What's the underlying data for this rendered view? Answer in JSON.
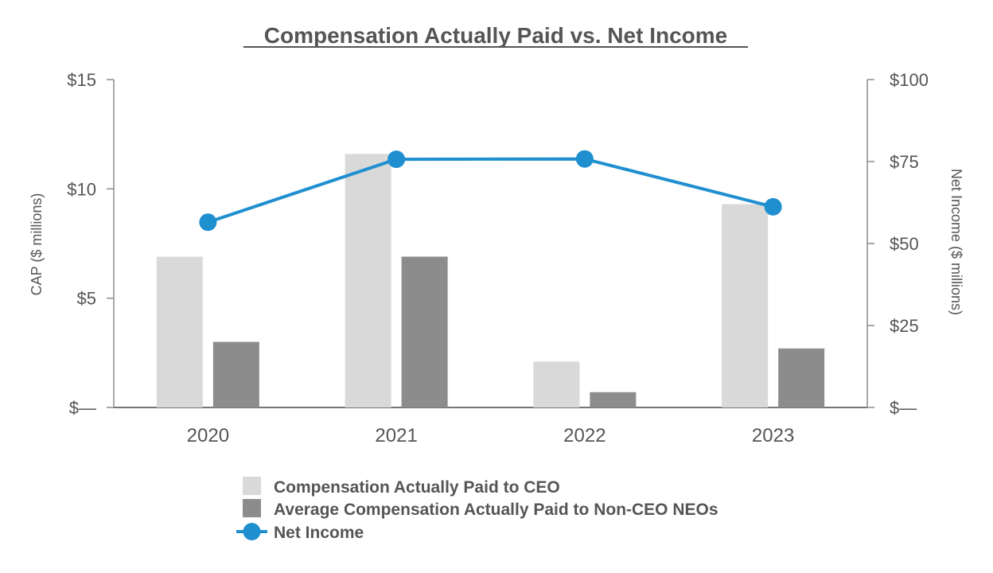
{
  "chart_data": {
    "type": "bar",
    "title": "Compensation Actually Paid vs. Net Income",
    "categories": [
      "2020",
      "2021",
      "2022",
      "2023"
    ],
    "y_left": {
      "label": "CAP ($ millions)",
      "ylim": [
        0,
        15
      ],
      "ticks": [
        0,
        5,
        10,
        15
      ],
      "tick_labels": [
        "$—",
        "$5",
        "$10",
        "$15"
      ]
    },
    "y_right": {
      "label": "Net Income ($ millions)",
      "ylim": [
        0,
        100
      ],
      "ticks": [
        0,
        25,
        50,
        75,
        100
      ],
      "tick_labels": [
        "$—",
        "$25",
        "$50",
        "$75",
        "$100"
      ]
    },
    "series": [
      {
        "name": "Compensation Actually Paid to CEO",
        "type": "bar",
        "axis": "left",
        "color": "#d9d9d9",
        "values": [
          6.9,
          11.6,
          2.1,
          9.3
        ]
      },
      {
        "name": "Average Compensation Actually Paid to Non-CEO NEOs",
        "type": "bar",
        "axis": "left",
        "color": "#8c8c8c",
        "values": [
          3.0,
          6.9,
          0.7,
          2.7
        ]
      },
      {
        "name": "Net Income",
        "type": "line",
        "axis": "right",
        "color": "#1f8fcf",
        "values": [
          56.5,
          75.7,
          75.8,
          61.2
        ]
      }
    ],
    "grid": false,
    "legend_position": "bottom"
  }
}
